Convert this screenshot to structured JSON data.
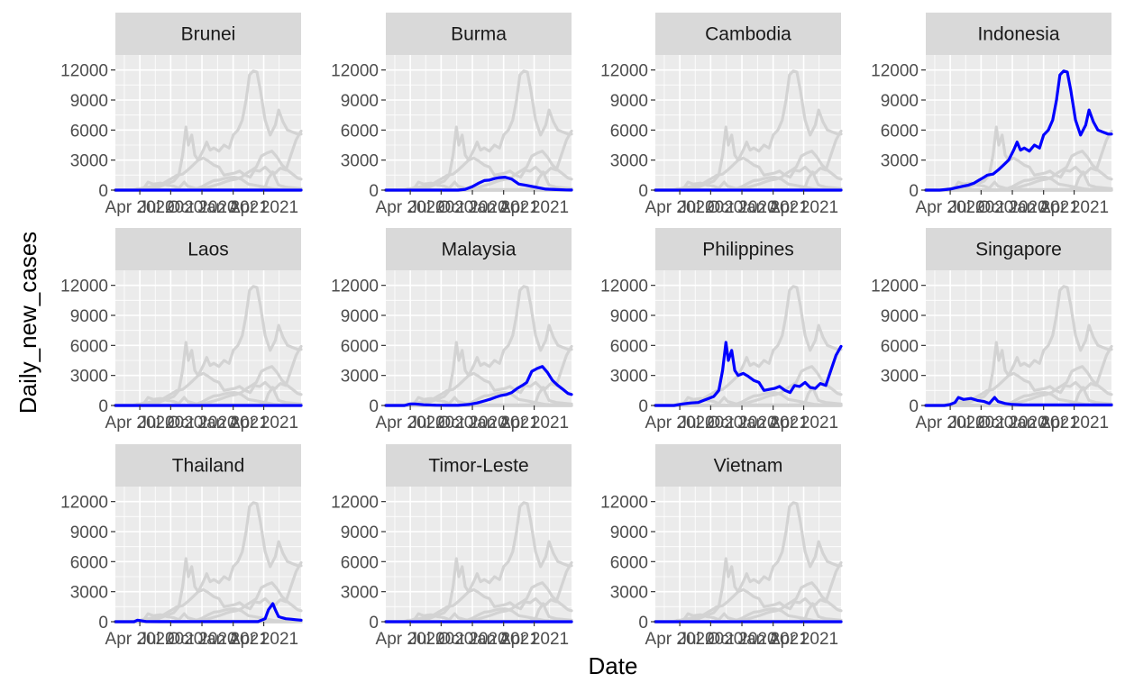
{
  "chart_data": {
    "type": "line",
    "layout": "facet_wrap",
    "xlabel": "Date",
    "ylabel": "Daily_new_cases",
    "y_ticks": [
      0,
      3000,
      6000,
      9000,
      12000
    ],
    "ylim": [
      0,
      12000
    ],
    "x_ticks": [
      "2020-04-01",
      "2020-07-01",
      "2020-10-01",
      "2021-01-01",
      "2021-04-01"
    ],
    "x_tick_labels": [
      "Apr 2020",
      "Jul 2020",
      "Oct 2020",
      "Jan 2021",
      "Apr 2021"
    ],
    "xlim": [
      "2020-01-20",
      "2021-07-20"
    ],
    "grid": true,
    "colors": {
      "highlight": "#0000FF",
      "background_series": "#D3D3D3",
      "panel": "#EBEBEB",
      "strip": "#D9D9D9",
      "grid": "#FFFFFF"
    },
    "series": [
      {
        "name": "Brunei",
        "x": [
          "2020-01-20",
          "2021-07-20"
        ],
        "values": [
          0,
          0
        ]
      },
      {
        "name": "Burma",
        "x": [
          "2020-01-20",
          "2020-08-20",
          "2020-09-10",
          "2020-10-01",
          "2020-10-20",
          "2020-11-05",
          "2020-11-20",
          "2020-12-05",
          "2020-12-20",
          "2021-01-05",
          "2021-01-25",
          "2021-02-15",
          "2021-03-05",
          "2021-04-05",
          "2021-05-05",
          "2021-06-05",
          "2021-07-05",
          "2021-07-20"
        ],
        "values": [
          0,
          0,
          80,
          350,
          700,
          950,
          1000,
          1150,
          1250,
          1300,
          1100,
          600,
          500,
          300,
          100,
          50,
          20,
          10
        ]
      },
      {
        "name": "Cambodia",
        "x": [
          "2020-01-20",
          "2021-07-20"
        ],
        "values": [
          0,
          0
        ]
      },
      {
        "name": "Indonesia",
        "x": [
          "2020-01-20",
          "2020-03-01",
          "2020-04-01",
          "2020-04-20",
          "2020-05-10",
          "2020-05-25",
          "2020-06-10",
          "2020-06-25",
          "2020-07-05",
          "2020-07-20",
          "2020-08-05",
          "2020-08-20",
          "2020-09-05",
          "2020-09-20",
          "2020-10-05",
          "2020-10-15",
          "2020-10-25",
          "2020-11-05",
          "2020-11-20",
          "2020-12-05",
          "2020-12-20",
          "2021-01-01",
          "2021-01-15",
          "2021-01-28",
          "2021-02-08",
          "2021-02-18",
          "2021-03-01",
          "2021-03-12",
          "2021-03-22",
          "2021-04-05",
          "2021-04-20",
          "2021-05-05",
          "2021-05-15",
          "2021-05-28",
          "2021-06-10",
          "2021-06-25",
          "2021-07-10",
          "2021-07-20"
        ],
        "values": [
          0,
          0,
          100,
          250,
          400,
          500,
          700,
          1000,
          1200,
          1500,
          1600,
          2000,
          2500,
          3000,
          4000,
          4800,
          4000,
          4200,
          3900,
          4500,
          4200,
          5500,
          6000,
          7000,
          9000,
          11500,
          11900,
          11800,
          10000,
          7000,
          5500,
          6500,
          8000,
          6800,
          6000,
          5800,
          5600,
          5600
        ]
      },
      {
        "name": "Laos",
        "x": [
          "2020-01-20",
          "2021-07-20"
        ],
        "values": [
          0,
          0
        ]
      },
      {
        "name": "Malaysia",
        "x": [
          "2020-01-20",
          "2020-03-15",
          "2020-04-01",
          "2020-04-15",
          "2020-05-10",
          "2020-06-15",
          "2020-07-20",
          "2020-08-20",
          "2020-09-20",
          "2020-10-15",
          "2020-11-05",
          "2020-11-25",
          "2020-12-10",
          "2020-12-25",
          "2021-01-10",
          "2021-01-25",
          "2021-02-10",
          "2021-02-25",
          "2021-03-10",
          "2021-03-25",
          "2021-04-10",
          "2021-04-25",
          "2021-05-10",
          "2021-05-25",
          "2021-06-10",
          "2021-06-25",
          "2021-07-10",
          "2021-07-20"
        ],
        "values": [
          0,
          0,
          150,
          150,
          70,
          30,
          20,
          20,
          100,
          250,
          450,
          650,
          850,
          1000,
          1100,
          1300,
          1700,
          2000,
          2300,
          3400,
          3700,
          3900,
          3300,
          2500,
          2000,
          1600,
          1200,
          1100
        ]
      },
      {
        "name": "Philippines",
        "x": [
          "2020-01-20",
          "2020-03-15",
          "2020-04-10",
          "2020-05-05",
          "2020-05-25",
          "2020-06-10",
          "2020-06-25",
          "2020-07-10",
          "2020-07-25",
          "2020-08-05",
          "2020-08-15",
          "2020-08-22",
          "2020-09-01",
          "2020-09-10",
          "2020-09-20",
          "2020-10-05",
          "2020-10-20",
          "2020-11-05",
          "2020-11-20",
          "2020-12-05",
          "2020-12-20",
          "2021-01-05",
          "2021-01-20",
          "2021-02-05",
          "2021-02-20",
          "2021-03-05",
          "2021-03-20",
          "2021-04-05",
          "2021-04-20",
          "2021-05-05",
          "2021-05-20",
          "2021-06-05",
          "2021-06-20",
          "2021-07-05",
          "2021-07-20"
        ],
        "values": [
          0,
          0,
          150,
          250,
          300,
          500,
          700,
          900,
          1500,
          3500,
          6300,
          4500,
          5500,
          3500,
          3000,
          3200,
          2900,
          2500,
          2300,
          1500,
          1600,
          1700,
          1900,
          1500,
          1300,
          2000,
          1900,
          2300,
          1800,
          1700,
          2200,
          2000,
          3500,
          5000,
          5900
        ]
      },
      {
        "name": "Singapore",
        "x": [
          "2020-01-20",
          "2020-03-15",
          "2020-04-01",
          "2020-04-15",
          "2020-04-25",
          "2020-05-10",
          "2020-06-01",
          "2020-06-20",
          "2020-07-10",
          "2020-07-25",
          "2020-08-10",
          "2020-08-20",
          "2020-09-10",
          "2020-10-01",
          "2020-11-01",
          "2021-01-01",
          "2021-03-01",
          "2021-05-01",
          "2021-07-01",
          "2021-07-20"
        ],
        "values": [
          0,
          0,
          100,
          300,
          800,
          600,
          700,
          500,
          400,
          200,
          800,
          400,
          200,
          100,
          50,
          50,
          50,
          50,
          50,
          50
        ]
      },
      {
        "name": "Thailand",
        "x": [
          "2020-01-20",
          "2020-03-15",
          "2020-03-25",
          "2020-04-05",
          "2020-04-20",
          "2020-06-01",
          "2021-01-01",
          "2021-03-15",
          "2021-04-05",
          "2021-04-15",
          "2021-04-28",
          "2021-05-05",
          "2021-05-15",
          "2021-05-25",
          "2021-06-05",
          "2021-06-20",
          "2021-07-05",
          "2021-07-20"
        ],
        "values": [
          0,
          0,
          150,
          100,
          20,
          5,
          5,
          10,
          300,
          1200,
          1800,
          1200,
          500,
          400,
          300,
          250,
          200,
          150
        ]
      },
      {
        "name": "Timor-Leste",
        "x": [
          "2020-01-20",
          "2021-07-20"
        ],
        "values": [
          0,
          0
        ]
      },
      {
        "name": "Vietnam",
        "x": [
          "2020-01-20",
          "2021-07-20"
        ],
        "values": [
          0,
          0
        ]
      }
    ]
  }
}
